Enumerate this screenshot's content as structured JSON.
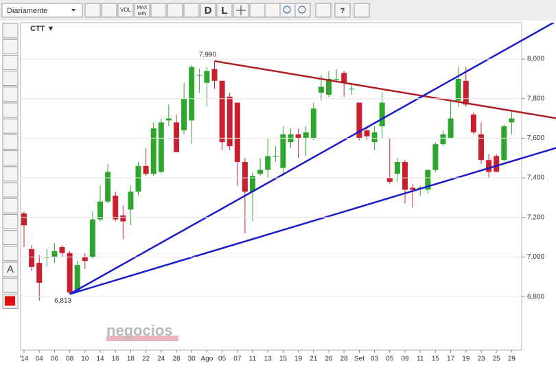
{
  "ui": {
    "period": "Diariamente",
    "vol": "VOL",
    "max": "MAX",
    "min": "MIN",
    "d": "D",
    "l": "L",
    "text_tool": "A",
    "symbol": "CTT ▼",
    "watermark": "negocios"
  },
  "chart_data": {
    "type": "candlestick",
    "categories": [
      "'14",
      null,
      "04",
      null,
      "06",
      null,
      "08",
      null,
      "10",
      null,
      "14",
      null,
      "16",
      null,
      "18",
      null,
      "22",
      null,
      "24",
      null,
      "28",
      null,
      "30",
      null,
      "Ago",
      null,
      "05",
      null,
      "07",
      null,
      "11",
      null,
      "13",
      null,
      "15",
      null,
      "19",
      null,
      "21",
      null,
      "26",
      null,
      "28",
      null,
      "Set",
      null,
      "03",
      null,
      "05",
      null,
      "09",
      null,
      "11",
      null,
      "15",
      null,
      "17",
      null,
      "19",
      null,
      "23",
      null,
      "25",
      null,
      "29"
    ],
    "open": [
      7220,
      7040,
      6970,
      7000,
      7000,
      7050,
      7020,
      6830,
      7000,
      7000,
      7190,
      7280,
      7310,
      7210,
      7240,
      7330,
      7460,
      7420,
      7430,
      7690,
      7680,
      7640,
      7690,
      7920,
      7880,
      7950,
      7890,
      7810,
      7780,
      7480,
      7330,
      7420,
      7440,
      7510,
      7450,
      7580,
      7620,
      7600,
      7600,
      7830,
      7820,
      7900,
      7930,
      7850,
      7780,
      7640,
      7580,
      7660,
      7400,
      7420,
      7480,
      7350,
      7350,
      7340,
      7440,
      7570,
      7600,
      7790,
      7890,
      7720,
      7620,
      7490,
      7510,
      7490,
      7680
    ],
    "high": [
      7230,
      7060,
      7010,
      7040,
      7070,
      7060,
      7030,
      6980,
      7020,
      7230,
      7360,
      7470,
      7330,
      7260,
      7360,
      7480,
      7550,
      7680,
      7700,
      7770,
      7720,
      7880,
      7970,
      7950,
      7960,
      7990,
      7890,
      7830,
      7780,
      7500,
      7430,
      7500,
      7600,
      7560,
      7660,
      7650,
      7650,
      7660,
      7780,
      7920,
      7940,
      7950,
      7940,
      7880,
      7780,
      7660,
      7660,
      7830,
      7600,
      7500,
      7490,
      7370,
      7360,
      7440,
      7580,
      7640,
      7790,
      7960,
      7960,
      7730,
      7680,
      7520,
      7520,
      7670,
      7740
    ],
    "low": [
      7050,
      6930,
      6780,
      6950,
      6970,
      7000,
      6813,
      6820,
      6940,
      6990,
      7180,
      7270,
      7180,
      7090,
      7160,
      7310,
      7410,
      7410,
      7420,
      7660,
      7530,
      7620,
      7570,
      7830,
      7760,
      7850,
      7540,
      7540,
      7360,
      7120,
      7180,
      7410,
      7400,
      7480,
      7410,
      7550,
      7500,
      7510,
      7590,
      7790,
      7810,
      7880,
      7810,
      7820,
      7590,
      7590,
      7540,
      7600,
      7370,
      7380,
      7270,
      7250,
      7310,
      7320,
      7430,
      7560,
      7600,
      7760,
      7760,
      7620,
      7470,
      7400,
      7430,
      7480,
      7620
    ],
    "close": [
      7160,
      6950,
      6870,
      7000,
      7030,
      7020,
      6820,
      6960,
      6980,
      7190,
      7280,
      7430,
      7190,
      7180,
      7330,
      7460,
      7420,
      7650,
      7680,
      7700,
      7530,
      7800,
      7960,
      7920,
      7940,
      7890,
      7580,
      7560,
      7480,
      7330,
      7410,
      7440,
      7510,
      7510,
      7620,
      7620,
      7600,
      7630,
      7750,
      7860,
      7900,
      7900,
      7880,
      7850,
      7600,
      7610,
      7630,
      7780,
      7380,
      7480,
      7340,
      7340,
      7350,
      7440,
      7570,
      7620,
      7700,
      7900,
      7770,
      7630,
      7490,
      7430,
      7430,
      7660,
      7700
    ],
    "up_color": "#2ea62e",
    "down_color": "#c8202e",
    "ylim": [
      6530,
      8184
    ],
    "yticks": [
      {
        "value": 6800,
        "label": "6,800"
      },
      {
        "value": 7000,
        "label": "7,000"
      },
      {
        "value": 7200,
        "label": "7,200"
      },
      {
        "value": 7400,
        "label": "7,400"
      },
      {
        "value": 7600,
        "label": "7,600"
      },
      {
        "value": 7800,
        "label": "7,800"
      },
      {
        "value": 8000,
        "label": "8,000"
      }
    ],
    "grid": true,
    "annotations": [
      {
        "index": 25,
        "value": 7990,
        "label": "7,990",
        "position": "above"
      },
      {
        "index": 6,
        "value": 6813,
        "label": "6,813",
        "position": "below"
      }
    ],
    "trendlines": [
      {
        "x": [
          25,
          70
        ],
        "values": [
          7990,
          7700
        ],
        "color": "#b01c24"
      },
      {
        "x": [
          6,
          70
        ],
        "values": [
          6813,
          8195
        ],
        "color": "#1a1acc"
      },
      {
        "x": [
          6,
          70
        ],
        "values": [
          6813,
          7553
        ],
        "color": "#1a1acc"
      }
    ]
  }
}
